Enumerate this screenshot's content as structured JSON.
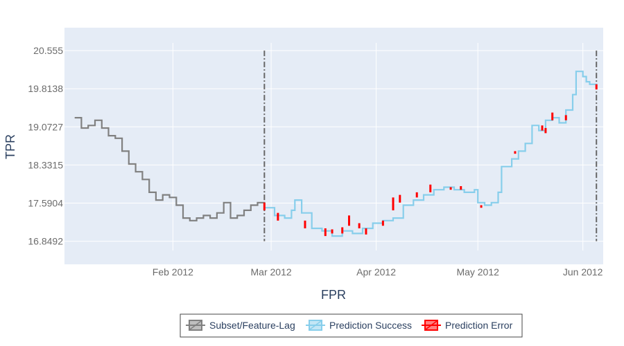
{
  "chart_data": {
    "type": "line",
    "xlabel": "FPR",
    "ylabel": "TPR",
    "x_range": [
      "2011-12-31",
      "2012-06-07"
    ],
    "ylim": [
      16.4,
      21.0
    ],
    "x_ticks": [
      {
        "date": "2012-02-01",
        "label": "Feb 2012"
      },
      {
        "date": "2012-03-01",
        "label": "Mar 2012"
      },
      {
        "date": "2012-04-01",
        "label": "Apr 2012"
      },
      {
        "date": "2012-05-01",
        "label": "May 2012"
      },
      {
        "date": "2012-06-01",
        "label": "Jun 2012"
      }
    ],
    "y_ticks": [
      16.8492,
      17.5904,
      18.3315,
      19.0727,
      19.8138,
      20.555
    ],
    "colors": {
      "subset": "#808080",
      "success": "#87ceeb",
      "error": "#ff0000",
      "marker": "#666666",
      "plot_bg": "#e5ecf6",
      "grid": "#ffffff"
    },
    "vlines": [
      {
        "date": "2012-02-28",
        "y_range": [
          16.85,
          20.555
        ],
        "style": "dashdot"
      },
      {
        "date": "2012-06-05",
        "y_range": [
          16.85,
          20.555
        ],
        "style": "dashdot"
      }
    ],
    "series": [
      {
        "name": "Subset/Feature-Lag",
        "color_key": "subset",
        "points": [
          [
            "2012-01-03",
            19.25
          ],
          [
            "2012-01-05",
            19.05
          ],
          [
            "2012-01-07",
            19.1
          ],
          [
            "2012-01-09",
            19.2
          ],
          [
            "2012-01-11",
            19.05
          ],
          [
            "2012-01-13",
            18.9
          ],
          [
            "2012-01-15",
            18.85
          ],
          [
            "2012-01-17",
            18.6
          ],
          [
            "2012-01-19",
            18.35
          ],
          [
            "2012-01-21",
            18.2
          ],
          [
            "2012-01-23",
            18.05
          ],
          [
            "2012-01-25",
            17.8
          ],
          [
            "2012-01-27",
            17.65
          ],
          [
            "2012-01-29",
            17.75
          ],
          [
            "2012-01-31",
            17.7
          ],
          [
            "2012-02-02",
            17.55
          ],
          [
            "2012-02-04",
            17.3
          ],
          [
            "2012-02-06",
            17.25
          ],
          [
            "2012-02-08",
            17.3
          ],
          [
            "2012-02-10",
            17.35
          ],
          [
            "2012-02-12",
            17.3
          ],
          [
            "2012-02-14",
            17.4
          ],
          [
            "2012-02-16",
            17.6
          ],
          [
            "2012-02-18",
            17.3
          ],
          [
            "2012-02-20",
            17.35
          ],
          [
            "2012-02-22",
            17.45
          ],
          [
            "2012-02-24",
            17.55
          ],
          [
            "2012-02-26",
            17.6
          ],
          [
            "2012-02-28",
            17.5
          ]
        ]
      },
      {
        "name": "Prediction Success",
        "color_key": "success",
        "points": [
          [
            "2012-02-28",
            17.5
          ],
          [
            "2012-03-02",
            17.35
          ],
          [
            "2012-03-05",
            17.3
          ],
          [
            "2012-03-07",
            17.45
          ],
          [
            "2012-03-08",
            17.65
          ],
          [
            "2012-03-10",
            17.4
          ],
          [
            "2012-03-13",
            17.1
          ],
          [
            "2012-03-16",
            17.05
          ],
          [
            "2012-03-19",
            16.95
          ],
          [
            "2012-03-22",
            17.05
          ],
          [
            "2012-03-25",
            17.0
          ],
          [
            "2012-03-28",
            17.1
          ],
          [
            "2012-03-31",
            17.2
          ],
          [
            "2012-04-03",
            17.25
          ],
          [
            "2012-04-06",
            17.3
          ],
          [
            "2012-04-09",
            17.55
          ],
          [
            "2012-04-12",
            17.65
          ],
          [
            "2012-04-15",
            17.75
          ],
          [
            "2012-04-18",
            17.85
          ],
          [
            "2012-04-21",
            17.9
          ],
          [
            "2012-04-24",
            17.85
          ],
          [
            "2012-04-27",
            17.8
          ],
          [
            "2012-04-30",
            17.85
          ],
          [
            "2012-05-01",
            17.6
          ],
          [
            "2012-05-03",
            17.55
          ],
          [
            "2012-05-05",
            17.6
          ],
          [
            "2012-05-07",
            17.8
          ],
          [
            "2012-05-08",
            18.3
          ],
          [
            "2012-05-11",
            18.45
          ],
          [
            "2012-05-13",
            18.6
          ],
          [
            "2012-05-15",
            18.75
          ],
          [
            "2012-05-17",
            19.1
          ],
          [
            "2012-05-19",
            19.0
          ],
          [
            "2012-05-21",
            19.2
          ],
          [
            "2012-05-23",
            19.25
          ],
          [
            "2012-05-25",
            19.15
          ],
          [
            "2012-05-27",
            19.4
          ],
          [
            "2012-05-29",
            19.7
          ],
          [
            "2012-05-30",
            20.15
          ],
          [
            "2012-06-01",
            20.05
          ],
          [
            "2012-06-02",
            19.95
          ],
          [
            "2012-06-03",
            19.9
          ],
          [
            "2012-06-05",
            19.85
          ]
        ]
      }
    ],
    "error_bars": [
      {
        "date": "2012-02-28",
        "low": 17.45,
        "high": 17.6
      },
      {
        "date": "2012-03-03",
        "low": 17.25,
        "high": 17.4
      },
      {
        "date": "2012-03-11",
        "low": 17.1,
        "high": 17.25
      },
      {
        "date": "2012-03-17",
        "low": 16.95,
        "high": 17.1
      },
      {
        "date": "2012-03-19",
        "low": 17.0,
        "high": 17.08
      },
      {
        "date": "2012-03-22",
        "low": 17.0,
        "high": 17.12
      },
      {
        "date": "2012-03-24",
        "low": 17.15,
        "high": 17.35
      },
      {
        "date": "2012-03-27",
        "low": 17.1,
        "high": 17.2
      },
      {
        "date": "2012-03-29",
        "low": 16.98,
        "high": 17.1
      },
      {
        "date": "2012-04-03",
        "low": 17.15,
        "high": 17.25
      },
      {
        "date": "2012-04-06",
        "low": 17.45,
        "high": 17.7
      },
      {
        "date": "2012-04-08",
        "low": 17.6,
        "high": 17.75
      },
      {
        "date": "2012-04-13",
        "low": 17.7,
        "high": 17.8
      },
      {
        "date": "2012-04-17",
        "low": 17.8,
        "high": 17.95
      },
      {
        "date": "2012-04-23",
        "low": 17.85,
        "high": 17.9
      },
      {
        "date": "2012-04-26",
        "low": 17.85,
        "high": 17.92
      },
      {
        "date": "2012-05-02",
        "low": 17.5,
        "high": 17.55
      },
      {
        "date": "2012-05-12",
        "low": 18.55,
        "high": 18.6
      },
      {
        "date": "2012-05-20",
        "low": 19.0,
        "high": 19.1
      },
      {
        "date": "2012-05-21",
        "low": 18.95,
        "high": 19.05
      },
      {
        "date": "2012-05-23",
        "low": 19.2,
        "high": 19.35
      },
      {
        "date": "2012-05-27",
        "low": 19.2,
        "high": 19.3
      },
      {
        "date": "2012-06-05",
        "low": 19.8,
        "high": 19.9
      }
    ]
  },
  "legend": {
    "items": [
      {
        "label": "Subset/Feature-Lag",
        "color_key": "subset"
      },
      {
        "label": "Prediction Success",
        "color_key": "success"
      },
      {
        "label": "Prediction Error",
        "color_key": "error"
      }
    ]
  }
}
